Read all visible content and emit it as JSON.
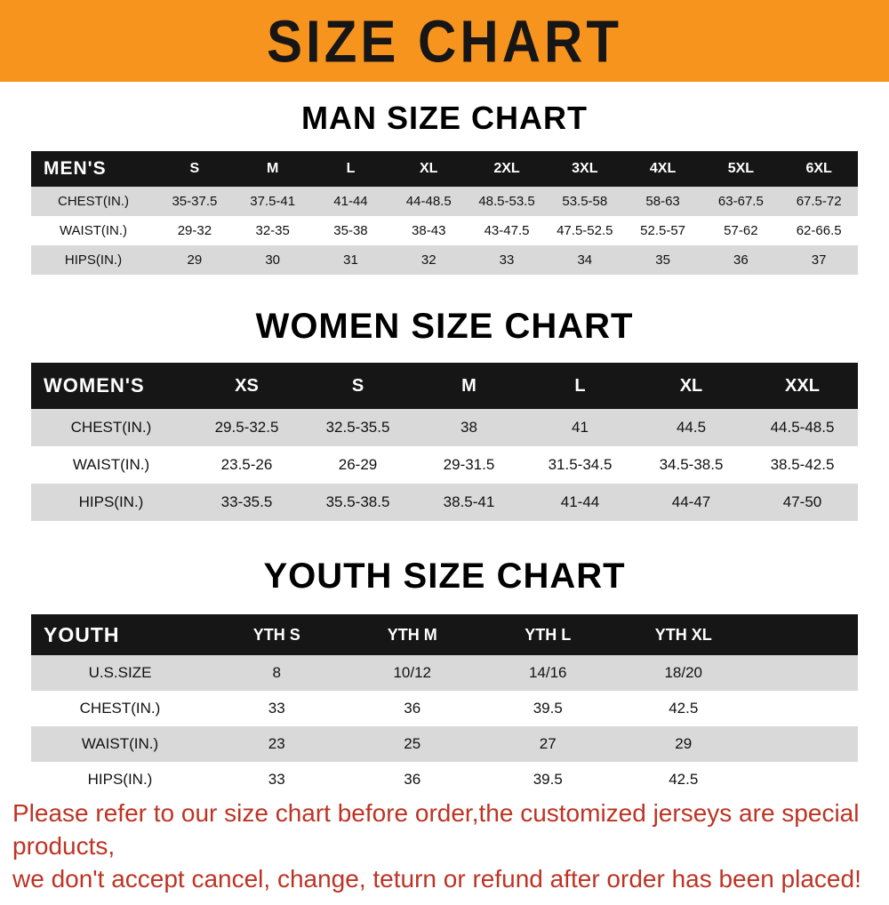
{
  "banner": {
    "title": "SIZE CHART"
  },
  "colors": {
    "banner_bg": "#f7941e",
    "header_bg": "#161616",
    "stripe": "#d9d9d9",
    "footer_text": "#bd3425"
  },
  "sections": [
    {
      "heading": "MAN SIZE CHART",
      "table": {
        "corner": "MEN'S",
        "columns": [
          "S",
          "M",
          "L",
          "XL",
          "2XL",
          "3XL",
          "4XL",
          "5XL",
          "6XL"
        ],
        "rows": [
          {
            "label": "CHEST(IN.)",
            "values": [
              "35-37.5",
              "37.5-41",
              "41-44",
              "44-48.5",
              "48.5-53.5",
              "53.5-58",
              "58-63",
              "63-67.5",
              "67.5-72"
            ]
          },
          {
            "label": "WAIST(IN.)",
            "values": [
              "29-32",
              "32-35",
              "35-38",
              "38-43",
              "43-47.5",
              "47.5-52.5",
              "52.5-57",
              "57-62",
              "62-66.5"
            ]
          },
          {
            "label": "HIPS(IN.)",
            "values": [
              "29",
              "30",
              "31",
              "32",
              "33",
              "34",
              "35",
              "36",
              "37"
            ]
          }
        ]
      }
    },
    {
      "heading": "WOMEN SIZE CHART",
      "table": {
        "corner": "WOMEN'S",
        "columns": [
          "XS",
          "S",
          "M",
          "L",
          "XL",
          "XXL"
        ],
        "rows": [
          {
            "label": "CHEST(IN.)",
            "values": [
              "29.5-32.5",
              "32.5-35.5",
              "38",
              "41",
              "44.5",
              "44.5-48.5"
            ]
          },
          {
            "label": "WAIST(IN.)",
            "values": [
              "23.5-26",
              "26-29",
              "29-31.5",
              "31.5-34.5",
              "34.5-38.5",
              "38.5-42.5"
            ]
          },
          {
            "label": "HIPS(IN.)",
            "values": [
              "33-35.5",
              "35.5-38.5",
              "38.5-41",
              "41-44",
              "44-47",
              "47-50"
            ]
          }
        ]
      }
    },
    {
      "heading": "YOUTH SIZE CHART",
      "table": {
        "corner": "YOUTH",
        "columns": [
          "YTH S",
          "YTH M",
          "YTH L",
          "YTH XL"
        ],
        "rows": [
          {
            "label": "U.S.SIZE",
            "values": [
              "8",
              "10/12",
              "14/16",
              "18/20"
            ]
          },
          {
            "label": "CHEST(IN.)",
            "values": [
              "33",
              "36",
              "39.5",
              "42.5"
            ]
          },
          {
            "label": "WAIST(IN.)",
            "values": [
              "23",
              "25",
              "27",
              "29"
            ]
          },
          {
            "label": "HIPS(IN.)",
            "values": [
              "33",
              "36",
              "39.5",
              "42.5"
            ]
          }
        ]
      }
    }
  ],
  "footer": {
    "line1": "Please refer to our size chart before order,the customized jerseys are special products,",
    "line2": "we don't accept cancel, change, teturn or refund after order has been placed!"
  }
}
